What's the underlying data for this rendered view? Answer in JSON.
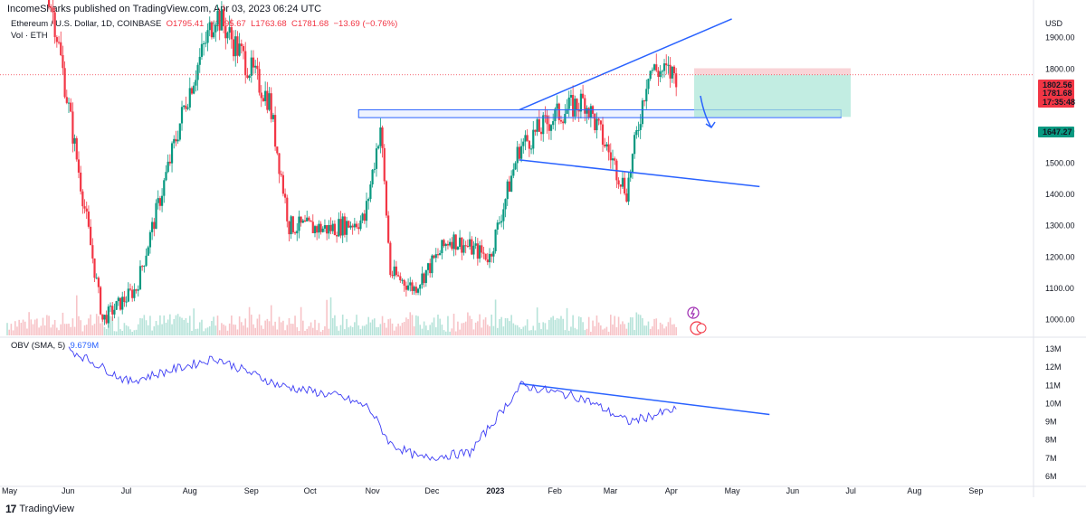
{
  "header": {
    "published": "IncomeSharks published on TradingView.com, Apr 03, 2023 06:24 UTC"
  },
  "legend": {
    "symbol": "Ethereum / U.S. Dollar, 1D, COINBASE",
    "open": "O1795.41",
    "high": "H1795.67",
    "low": "L1763.68",
    "close": "C1781.68",
    "change": "−13.69 (−0.76%)",
    "volume_label": "Vol · ETH"
  },
  "obv_legend": {
    "label": "OBV (SMA, 5)",
    "value": "9.679M"
  },
  "price_axis": {
    "currency": "USD",
    "ticks": [
      "1900.00",
      "1800.00",
      "1700.00",
      "1600.00",
      "1500.00",
      "1400.00",
      "1300.00",
      "1200.00",
      "1100.00",
      "1000.00"
    ],
    "badges": {
      "upper": "1802.56",
      "last": "1781.68",
      "countdown": "17:35:48",
      "target": "1647.27"
    }
  },
  "obv_axis": {
    "ticks": [
      "13M",
      "12M",
      "11M",
      "10M",
      "9M",
      "8M",
      "7M",
      "6M"
    ]
  },
  "time_axis": {
    "ticks": [
      "May",
      "Jun",
      "Jul",
      "Aug",
      "Sep",
      "Oct",
      "Nov",
      "Dec",
      "2023",
      "Feb",
      "Mar",
      "Apr",
      "May",
      "Jun",
      "Jul",
      "Aug",
      "Sep"
    ]
  },
  "brand": {
    "name": "TradingView"
  },
  "colors": {
    "up": "#089981",
    "down": "#f23645",
    "drawing": "#2962ff",
    "obv": "#3d3df5",
    "zone_profit": "#a8e6d6",
    "zone_loss": "#f8c9cd"
  },
  "chart_data": {
    "type": "candlestick",
    "symbol": "ETHUSD",
    "timeframe": "1D",
    "ylim": [
      950,
      1980
    ],
    "x_range": [
      "2022-05-01",
      "2023-09-30"
    ],
    "key_price_path": [
      {
        "date": "2022-05-01",
        "price": 2800
      },
      {
        "date": "2022-05-10",
        "price": 2400
      },
      {
        "date": "2022-05-25",
        "price": 1950
      },
      {
        "date": "2022-06-18",
        "price": 1000
      },
      {
        "date": "2022-07-05",
        "price": 1100
      },
      {
        "date": "2022-07-30",
        "price": 1700
      },
      {
        "date": "2022-08-14",
        "price": 1980
      },
      {
        "date": "2022-09-10",
        "price": 1700
      },
      {
        "date": "2022-09-20",
        "price": 1300
      },
      {
        "date": "2022-10-10",
        "price": 1290
      },
      {
        "date": "2022-10-28",
        "price": 1320
      },
      {
        "date": "2022-11-05",
        "price": 1620
      },
      {
        "date": "2022-11-10",
        "price": 1150
      },
      {
        "date": "2022-11-22",
        "price": 1100
      },
      {
        "date": "2022-12-10",
        "price": 1260
      },
      {
        "date": "2022-12-30",
        "price": 1200
      },
      {
        "date": "2023-01-14",
        "price": 1550
      },
      {
        "date": "2023-02-01",
        "price": 1650
      },
      {
        "date": "2023-02-16",
        "price": 1700
      },
      {
        "date": "2023-03-09",
        "price": 1410
      },
      {
        "date": "2023-03-20",
        "price": 1800
      },
      {
        "date": "2023-04-03",
        "price": 1781.68
      }
    ],
    "obv_path_millions": [
      {
        "date": "2022-06-01",
        "obv": 13.0
      },
      {
        "date": "2022-07-01",
        "obv": 11.2
      },
      {
        "date": "2022-08-14",
        "obv": 12.5
      },
      {
        "date": "2022-09-15",
        "obv": 11.0
      },
      {
        "date": "2022-10-15",
        "obv": 10.4
      },
      {
        "date": "2022-10-30",
        "obv": 9.8
      },
      {
        "date": "2022-11-10",
        "obv": 7.8
      },
      {
        "date": "2022-11-25",
        "obv": 7.0
      },
      {
        "date": "2022-12-20",
        "obv": 7.3
      },
      {
        "date": "2023-01-15",
        "obv": 11.0
      },
      {
        "date": "2023-02-15",
        "obv": 10.3
      },
      {
        "date": "2023-03-10",
        "obv": 9.0
      },
      {
        "date": "2023-04-03",
        "obv": 9.679
      }
    ],
    "annotations": [
      {
        "type": "trendline",
        "from": {
          "date": "2023-01-14",
          "price": 1670
        },
        "to": {
          "date": "2023-05-01",
          "price": 1960
        }
      },
      {
        "type": "trendline",
        "from": {
          "date": "2023-01-14",
          "price": 1510
        },
        "to": {
          "date": "2023-05-15",
          "price": 1425
        }
      },
      {
        "type": "rectangle",
        "from": {
          "date": "2022-10-25",
          "price": 1670
        },
        "to": {
          "date": "2023-06-25",
          "price": 1645
        }
      },
      {
        "type": "short_position",
        "entry": 1781.68,
        "stop": 1802.56,
        "target": 1647.27
      },
      {
        "type": "obv_trendline",
        "from": {
          "date": "2023-01-14",
          "obv": 11.1
        },
        "to": {
          "date": "2023-05-20",
          "obv": 9.4
        }
      }
    ]
  }
}
